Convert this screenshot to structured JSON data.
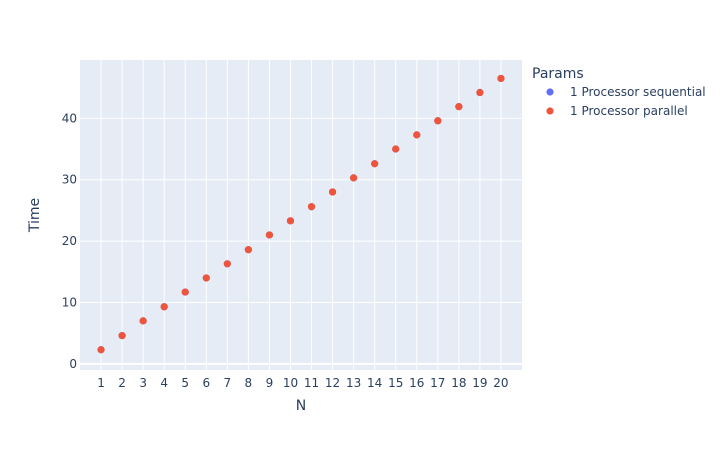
{
  "chart_data": {
    "type": "scatter",
    "xlabel": "N",
    "ylabel": "Time",
    "xlim": [
      0,
      21
    ],
    "ylim": [
      -1,
      49.5
    ],
    "x_ticks": [
      1,
      2,
      3,
      4,
      5,
      6,
      7,
      8,
      9,
      10,
      11,
      12,
      13,
      14,
      15,
      16,
      17,
      18,
      19,
      20
    ],
    "y_ticks": [
      0,
      10,
      20,
      30,
      40
    ],
    "grid": true,
    "legend": {
      "title": "Params",
      "placement": "right"
    },
    "series": [
      {
        "name": "1 Processor sequential",
        "color": "#636efa",
        "x": [
          1,
          2,
          3,
          4,
          5,
          6,
          7,
          8,
          9,
          10,
          11,
          12,
          13,
          14,
          15,
          16,
          17,
          18,
          19,
          20
        ],
        "y": [
          2.3,
          4.6,
          7.0,
          9.3,
          11.7,
          14.0,
          16.3,
          18.6,
          21.0,
          23.3,
          25.6,
          28.0,
          30.3,
          32.6,
          35.0,
          37.3,
          39.6,
          41.9,
          44.2,
          46.5
        ]
      },
      {
        "name": "1 Processor parallel",
        "color": "#ef553b",
        "x": [
          1,
          2,
          3,
          4,
          5,
          6,
          7,
          8,
          9,
          10,
          11,
          12,
          13,
          14,
          15,
          16,
          17,
          18,
          19,
          20
        ],
        "y": [
          2.3,
          4.6,
          7.0,
          9.3,
          11.7,
          14.0,
          16.3,
          18.6,
          21.0,
          23.3,
          25.6,
          28.0,
          30.3,
          32.6,
          35.0,
          37.3,
          39.6,
          41.9,
          44.2,
          46.5
        ]
      }
    ]
  }
}
